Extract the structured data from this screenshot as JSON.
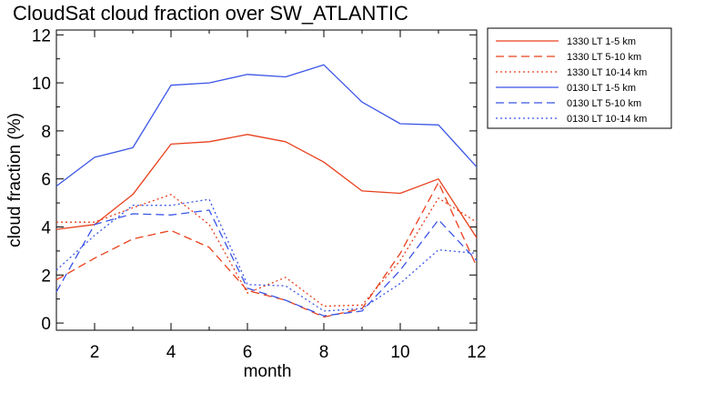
{
  "chart_data": {
    "type": "line",
    "title": "CloudSat cloud fraction over SW_ATLANTIC",
    "xlabel": "month",
    "ylabel": "cloud fraction (%)",
    "xlim": [
      1,
      12
    ],
    "ylim": [
      -0.3,
      12.2
    ],
    "xticks": [
      2,
      4,
      6,
      8,
      10,
      12
    ],
    "yticks": [
      0,
      2,
      4,
      6,
      8,
      10,
      12
    ],
    "x": [
      1,
      2,
      3,
      4,
      5,
      6,
      7,
      8,
      9,
      10,
      11,
      12
    ],
    "legend_position": "right",
    "colors": {
      "red": "#e8401c",
      "blue": "#3b55e6"
    },
    "series": [
      {
        "name": "1330 LT 1-5 km",
        "color": "#e8401c",
        "dash": "solid",
        "values": [
          3.9,
          4.1,
          5.35,
          7.45,
          7.55,
          7.85,
          7.55,
          6.7,
          5.5,
          5.4,
          6.0,
          3.55
        ]
      },
      {
        "name": "1330 LT 5-10 km",
        "color": "#e8401c",
        "dash": "dashed",
        "values": [
          1.8,
          2.7,
          3.5,
          3.85,
          3.15,
          1.35,
          0.95,
          0.25,
          0.6,
          2.9,
          5.85,
          2.35
        ]
      },
      {
        "name": "1330 LT 10-14 km",
        "color": "#e8401c",
        "dash": "dotted",
        "values": [
          4.2,
          4.2,
          4.8,
          5.35,
          4.1,
          1.25,
          1.9,
          0.7,
          0.75,
          2.6,
          5.2,
          4.2
        ]
      },
      {
        "name": "0130 LT 1-5 km",
        "color": "#3b55e6",
        "dash": "solid",
        "values": [
          5.7,
          6.9,
          7.3,
          9.9,
          10.0,
          10.35,
          10.25,
          10.75,
          9.2,
          8.3,
          8.25,
          6.5
        ]
      },
      {
        "name": "0130 LT 5-10 km",
        "color": "#3b55e6",
        "dash": "dashed",
        "values": [
          1.3,
          4.1,
          4.55,
          4.5,
          4.7,
          1.45,
          0.95,
          0.3,
          0.5,
          2.2,
          4.3,
          2.6
        ]
      },
      {
        "name": "0130 LT 10-14 km",
        "color": "#3b55e6",
        "dash": "dotted",
        "values": [
          2.2,
          3.65,
          4.9,
          4.9,
          5.15,
          1.6,
          1.55,
          0.5,
          0.6,
          1.65,
          3.05,
          2.9
        ]
      }
    ]
  }
}
